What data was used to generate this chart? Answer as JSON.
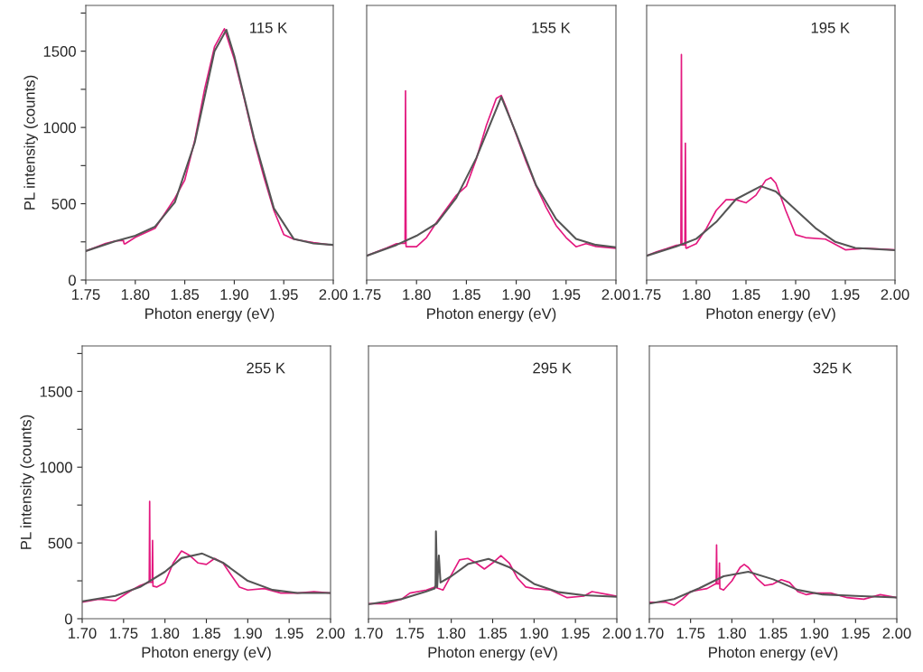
{
  "chart_data": [
    {
      "type": "line",
      "xlabel": "Photon energy (eV)",
      "ylabel": "PL intensity (counts)",
      "annotations": [
        "115 K"
      ],
      "xlim": [
        1.75,
        2.0
      ],
      "ylim": [
        0,
        1800
      ],
      "xticks": [
        {
          "value": 1.75,
          "label": "1.75"
        },
        {
          "value": 1.8,
          "label": "1.80"
        },
        {
          "value": 1.85,
          "label": "1.85"
        },
        {
          "value": 1.9,
          "label": "1.90"
        },
        {
          "value": 1.95,
          "label": "1.95"
        },
        {
          "value": 2.0,
          "label": "2.00"
        }
      ],
      "yticks": [
        0,
        {
          "value": 250,
          "label": null
        },
        500,
        {
          "value": 750,
          "label": null
        },
        1000,
        {
          "value": 1250,
          "label": null
        },
        1500,
        {
          "value": 1750,
          "label": null
        }
      ],
      "series": [
        {
          "color": "#e3197f",
          "x": [
            1.75,
            1.76,
            1.77,
            1.78,
            1.785,
            1.7853,
            1.7857,
            1.788,
            1.7883,
            1.7887,
            1.79,
            1.8,
            1.82,
            1.84,
            1.85,
            1.86,
            1.87,
            1.88,
            1.89,
            1.9,
            1.91,
            1.92,
            1.93,
            1.94,
            1.95,
            1.96,
            1.97,
            1.98,
            2.0
          ],
          "values": [
            190,
            215,
            240,
            256,
            258,
            null,
            258,
            260,
            null,
            238,
            238,
            280,
            339,
            536,
            655,
            913,
            1250,
            1528,
            1647,
            1448,
            1190,
            913,
            674,
            456,
            298,
            268,
            256,
            245,
            228
          ]
        },
        {
          "color": "#555555",
          "x": [
            1.75,
            1.78,
            1.8,
            1.82,
            1.84,
            1.86,
            1.88,
            1.892,
            1.9,
            1.92,
            1.94,
            1.96,
            1.98,
            2.0
          ],
          "values": [
            190,
            255,
            290,
            350,
            510,
            900,
            1500,
            1640,
            1470,
            930,
            470,
            270,
            240,
            230
          ]
        }
      ]
    },
    {
      "type": "line",
      "xlabel": "Photon energy (eV)",
      "annotations": [
        "155 K"
      ],
      "xlim": [
        1.75,
        2.0
      ],
      "ylim": [
        0,
        1800
      ],
      "tick_labels": "x",
      "xticks": [
        {
          "value": 1.75,
          "label": "1.75"
        },
        {
          "value": 1.8,
          "label": "1.80"
        },
        {
          "value": 1.85,
          "label": "1.85"
        },
        {
          "value": 1.9,
          "label": "1.90"
        },
        {
          "value": 1.95,
          "label": "1.95"
        },
        {
          "value": 2.0,
          "label": "2.00"
        }
      ],
      "yticks": [
        0,
        500,
        1000,
        1500
      ],
      "series": [
        {
          "color": "#e3197f",
          "x": [
            1.75,
            1.76,
            1.77,
            1.78,
            1.785,
            1.7855,
            1.786,
            1.7885,
            1.789,
            1.7895,
            1.79,
            1.8,
            1.81,
            1.82,
            1.84,
            1.85,
            1.86,
            1.87,
            1.88,
            1.885,
            1.89,
            1.9,
            1.91,
            1.92,
            1.93,
            1.94,
            1.95,
            1.96,
            1.97,
            1.98,
            2.0
          ],
          "values": [
            159,
            185,
            210,
            238,
            240,
            null,
            240,
            240,
            1240,
            220,
            218,
            218,
            278,
            377,
            556,
            615,
            794,
            1012,
            1190,
            1210,
            1131,
            952,
            774,
            615,
            476,
            357,
            278,
            218,
            238,
            220,
            208
          ]
        },
        {
          "color": "#555555",
          "x": [
            1.75,
            1.78,
            1.8,
            1.82,
            1.84,
            1.86,
            1.885,
            1.9,
            1.92,
            1.94,
            1.96,
            1.98,
            2.0
          ],
          "values": [
            159,
            230,
            290,
            370,
            540,
            800,
            1200,
            960,
            620,
            400,
            270,
            230,
            215
          ]
        }
      ]
    },
    {
      "type": "line",
      "xlabel": "Photon energy (eV)",
      "annotations": [
        "195 K"
      ],
      "xlim": [
        1.75,
        2.0
      ],
      "ylim": [
        0,
        1800
      ],
      "tick_labels": "x",
      "xticks": [
        {
          "value": 1.75,
          "label": "1.75"
        },
        {
          "value": 1.8,
          "label": "1.80"
        },
        {
          "value": 1.85,
          "label": "1.85"
        },
        {
          "value": 1.9,
          "label": "1.90"
        },
        {
          "value": 1.95,
          "label": "1.95"
        },
        {
          "value": 2.0,
          "label": "2.00"
        }
      ],
      "yticks": [
        0,
        500,
        1000,
        1500
      ],
      "series": [
        {
          "color": "#e3197f",
          "x": [
            1.75,
            1.76,
            1.77,
            1.78,
            1.7845,
            1.785,
            1.7855,
            1.7885,
            1.789,
            1.7895,
            1.79,
            1.8,
            1.81,
            1.82,
            1.83,
            1.84,
            1.85,
            1.86,
            1.87,
            1.875,
            1.88,
            1.89,
            1.9,
            1.91,
            1.93,
            1.95,
            1.97,
            2.0
          ],
          "values": [
            159,
            185,
            205,
            228,
            230,
            1478,
            230,
            230,
            897,
            210,
            208,
            238,
            337,
            456,
            526,
            526,
            506,
            556,
            655,
            671,
            635,
            456,
            297,
            278,
            268,
            198,
            208,
            198
          ]
        },
        {
          "color": "#555555",
          "x": [
            1.75,
            1.78,
            1.8,
            1.82,
            1.84,
            1.865,
            1.88,
            1.9,
            1.92,
            1.94,
            1.96,
            2.0
          ],
          "values": [
            159,
            220,
            270,
            380,
            530,
            615,
            580,
            460,
            340,
            250,
            210,
            195
          ]
        }
      ]
    },
    {
      "type": "line",
      "xlabel": "Photon energy (eV)",
      "ylabel": "PL intensity (counts)",
      "annotations": [
        "255 K"
      ],
      "xlim": [
        1.7,
        2.0
      ],
      "ylim": [
        0,
        1800
      ],
      "xticks": [
        {
          "value": 1.7,
          "label": "1.70"
        },
        {
          "value": 1.75,
          "label": "1.75"
        },
        {
          "value": 1.8,
          "label": "1.80"
        },
        {
          "value": 1.85,
          "label": "1.85"
        },
        {
          "value": 1.9,
          "label": "1.90"
        },
        {
          "value": 1.95,
          "label": "1.95"
        },
        {
          "value": 2.0,
          "label": "2.00"
        }
      ],
      "yticks": [
        0,
        {
          "value": 250,
          "label": null
        },
        500,
        {
          "value": 750,
          "label": null
        },
        1000,
        {
          "value": 1250,
          "label": null
        },
        1500,
        {
          "value": 1750,
          "label": null
        }
      ],
      "series": [
        {
          "color": "#e3197f",
          "x": [
            1.7,
            1.72,
            1.74,
            1.76,
            1.77,
            1.78,
            1.781,
            1.7815,
            1.782,
            1.7845,
            1.785,
            1.7855,
            1.79,
            1.8,
            1.81,
            1.82,
            1.83,
            1.84,
            1.85,
            1.86,
            1.87,
            1.88,
            1.89,
            1.9,
            1.92,
            1.94,
            1.96,
            1.98,
            2.0
          ],
          "values": [
            109,
            129,
            119,
            189,
            219,
            239,
            240,
            775,
            240,
            240,
            517,
            215,
            209,
            239,
            368,
            447,
            417,
            368,
            358,
            398,
            368,
            288,
            209,
            189,
            199,
            169,
            169,
            179,
            169
          ]
        },
        {
          "color": "#555555",
          "x": [
            1.7,
            1.74,
            1.77,
            1.8,
            1.82,
            1.845,
            1.87,
            1.9,
            1.93,
            1.96,
            2.0
          ],
          "values": [
            115,
            150,
            210,
            310,
            400,
            430,
            370,
            250,
            190,
            170,
            170
          ]
        }
      ]
    },
    {
      "type": "line",
      "xlabel": "Photon energy (eV)",
      "annotations": [
        "295 K"
      ],
      "xlim": [
        1.7,
        2.0
      ],
      "ylim": [
        0,
        1800
      ],
      "tick_labels": "x",
      "xticks": [
        {
          "value": 1.7,
          "label": "1.70"
        },
        {
          "value": 1.75,
          "label": "1.75"
        },
        {
          "value": 1.8,
          "label": "1.80"
        },
        {
          "value": 1.85,
          "label": "1.85"
        },
        {
          "value": 1.9,
          "label": "1.90"
        },
        {
          "value": 1.95,
          "label": "1.95"
        },
        {
          "value": 2.0,
          "label": "2.00"
        }
      ],
      "yticks": [
        0,
        500,
        1000,
        1500
      ],
      "series": [
        {
          "color": "#e3197f",
          "x": [
            1.7,
            1.72,
            1.74,
            1.75,
            1.77,
            1.78,
            1.79,
            1.8,
            1.81,
            1.82,
            1.83,
            1.84,
            1.85,
            1.86,
            1.87,
            1.88,
            1.89,
            1.9,
            1.92,
            1.94,
            1.96,
            1.97,
            1.99,
            2.0
          ],
          "values": [
            99,
            99,
            129,
            169,
            189,
            209,
            189,
            288,
            388,
            398,
            368,
            328,
            368,
            417,
            368,
            268,
            209,
            199,
            189,
            139,
            149,
            179,
            159,
            149
          ]
        },
        {
          "color": "#555555",
          "x": [
            1.7,
            1.74,
            1.77,
            1.78,
            1.781,
            1.7815,
            1.783,
            1.785,
            1.787,
            1.8,
            1.82,
            1.845,
            1.87,
            1.9,
            1.93,
            1.96,
            2.0
          ],
          "values": [
            95,
            130,
            180,
            200,
            220,
            577,
            209,
            417,
            239,
            280,
            360,
            395,
            340,
            230,
            175,
            155,
            145
          ]
        }
      ]
    },
    {
      "type": "line",
      "xlabel": "Photon energy (eV)",
      "annotations": [
        "325 K"
      ],
      "xlim": [
        1.7,
        2.0
      ],
      "ylim": [
        0,
        1800
      ],
      "tick_labels": "x",
      "xticks": [
        {
          "value": 1.7,
          "label": "1.70"
        },
        {
          "value": 1.75,
          "label": "1.75"
        },
        {
          "value": 1.8,
          "label": "1.80"
        },
        {
          "value": 1.85,
          "label": "1.85"
        },
        {
          "value": 1.9,
          "label": "1.90"
        },
        {
          "value": 1.95,
          "label": "1.95"
        },
        {
          "value": 2.0,
          "label": "2.00"
        }
      ],
      "yticks": [
        0,
        500,
        1000,
        1500
      ],
      "series": [
        {
          "color": "#e3197f",
          "x": [
            1.7,
            1.72,
            1.73,
            1.74,
            1.75,
            1.76,
            1.77,
            1.78,
            1.781,
            1.7815,
            1.782,
            1.7845,
            1.785,
            1.7855,
            1.79,
            1.8,
            1.81,
            1.815,
            1.82,
            1.83,
            1.84,
            1.85,
            1.86,
            1.87,
            1.88,
            1.89,
            1.9,
            1.92,
            1.94,
            1.96,
            1.98,
            2.0
          ],
          "values": [
            109,
            109,
            89,
            129,
            179,
            189,
            199,
            229,
            230,
            487,
            230,
            230,
            368,
            200,
            189,
            249,
            338,
            358,
            338,
            268,
            219,
            229,
            258,
            239,
            179,
            159,
            169,
            169,
            139,
            129,
            159,
            139
          ]
        },
        {
          "color": "#555555",
          "x": [
            1.7,
            1.73,
            1.76,
            1.79,
            1.82,
            1.85,
            1.88,
            1.91,
            1.95,
            2.0
          ],
          "values": [
            100,
            130,
            200,
            280,
            310,
            260,
            190,
            160,
            150,
            140
          ]
        }
      ]
    }
  ]
}
